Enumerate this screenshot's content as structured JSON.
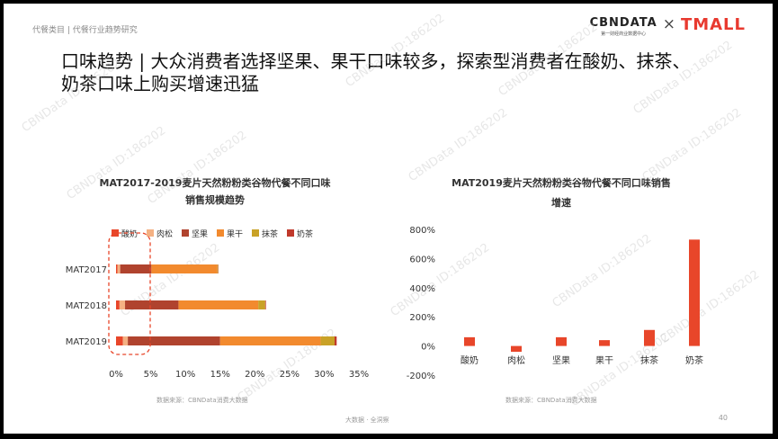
{
  "breadcrumb": "代餐类目 | 代餐行业趋势研究",
  "logos": {
    "cbndata": "CBNDATA",
    "cbndata_sub": "第一财经商业数据中心",
    "separator": "×",
    "tmall": "TMALL"
  },
  "headline": {
    "line1": "口味趋势 | 大众消费者选择坚果、果干口味较多，探索型消费者在酸奶、抹茶、",
    "line2": "奶茶口味上购买增速迅猛"
  },
  "watermark": "CBNData ID:186202",
  "footer": {
    "text": "大数据 · 全洞察",
    "page": "40"
  },
  "charts": {
    "left": {
      "source": "数据来源：CBNData消费大数据"
    },
    "right": {
      "source": "数据来源：CBNData消费大数据"
    }
  },
  "chart_data": [
    {
      "type": "bar",
      "orientation": "horizontal",
      "stacked": true,
      "title": "MAT2017-2019麦片天然粉粉类谷物代餐不同口味",
      "subtitle": "销售规模趋势",
      "categories": [
        "MAT2017",
        "MAT2018",
        "MAT2019"
      ],
      "series": [
        {
          "name": "酸奶",
          "color": "#e8462a",
          "values": [
            0.2,
            0.5,
            1.0
          ]
        },
        {
          "name": "肉松",
          "color": "#f4b183",
          "values": [
            0.4,
            0.8,
            0.7
          ]
        },
        {
          "name": "坚果",
          "color": "#b0432e",
          "values": [
            4.5,
            7.7,
            13.3
          ]
        },
        {
          "name": "果干",
          "color": "#f28a2e",
          "values": [
            9.5,
            11.5,
            14.5
          ]
        },
        {
          "name": "抹茶",
          "color": "#c9a227",
          "values": [
            0.1,
            1.0,
            2.0
          ]
        },
        {
          "name": "奶茶",
          "color": "#c0392b",
          "values": [
            0.05,
            0.1,
            0.3
          ]
        }
      ],
      "xlim": [
        0,
        35
      ],
      "xticks": [
        "0%",
        "5%",
        "10%",
        "15%",
        "20%",
        "25%",
        "30%",
        "35%"
      ],
      "legend": "top",
      "annotation": "dashed rounded box highlighting 0-5% segment",
      "grid": false
    },
    {
      "type": "bar",
      "title": "MAT2019麦片天然粉粉类谷物代餐不同口味销售",
      "subtitle": "增速",
      "categories": [
        "酸奶",
        "肉松",
        "坚果",
        "果干",
        "抹茶",
        "奶茶"
      ],
      "values": [
        60,
        -40,
        60,
        40,
        110,
        730
      ],
      "color": "#e8462a",
      "ylim": [
        -200,
        800
      ],
      "yticks": [
        "800%",
        "600%",
        "400%",
        "200%",
        "0%",
        "-200%"
      ],
      "grid": false
    }
  ]
}
